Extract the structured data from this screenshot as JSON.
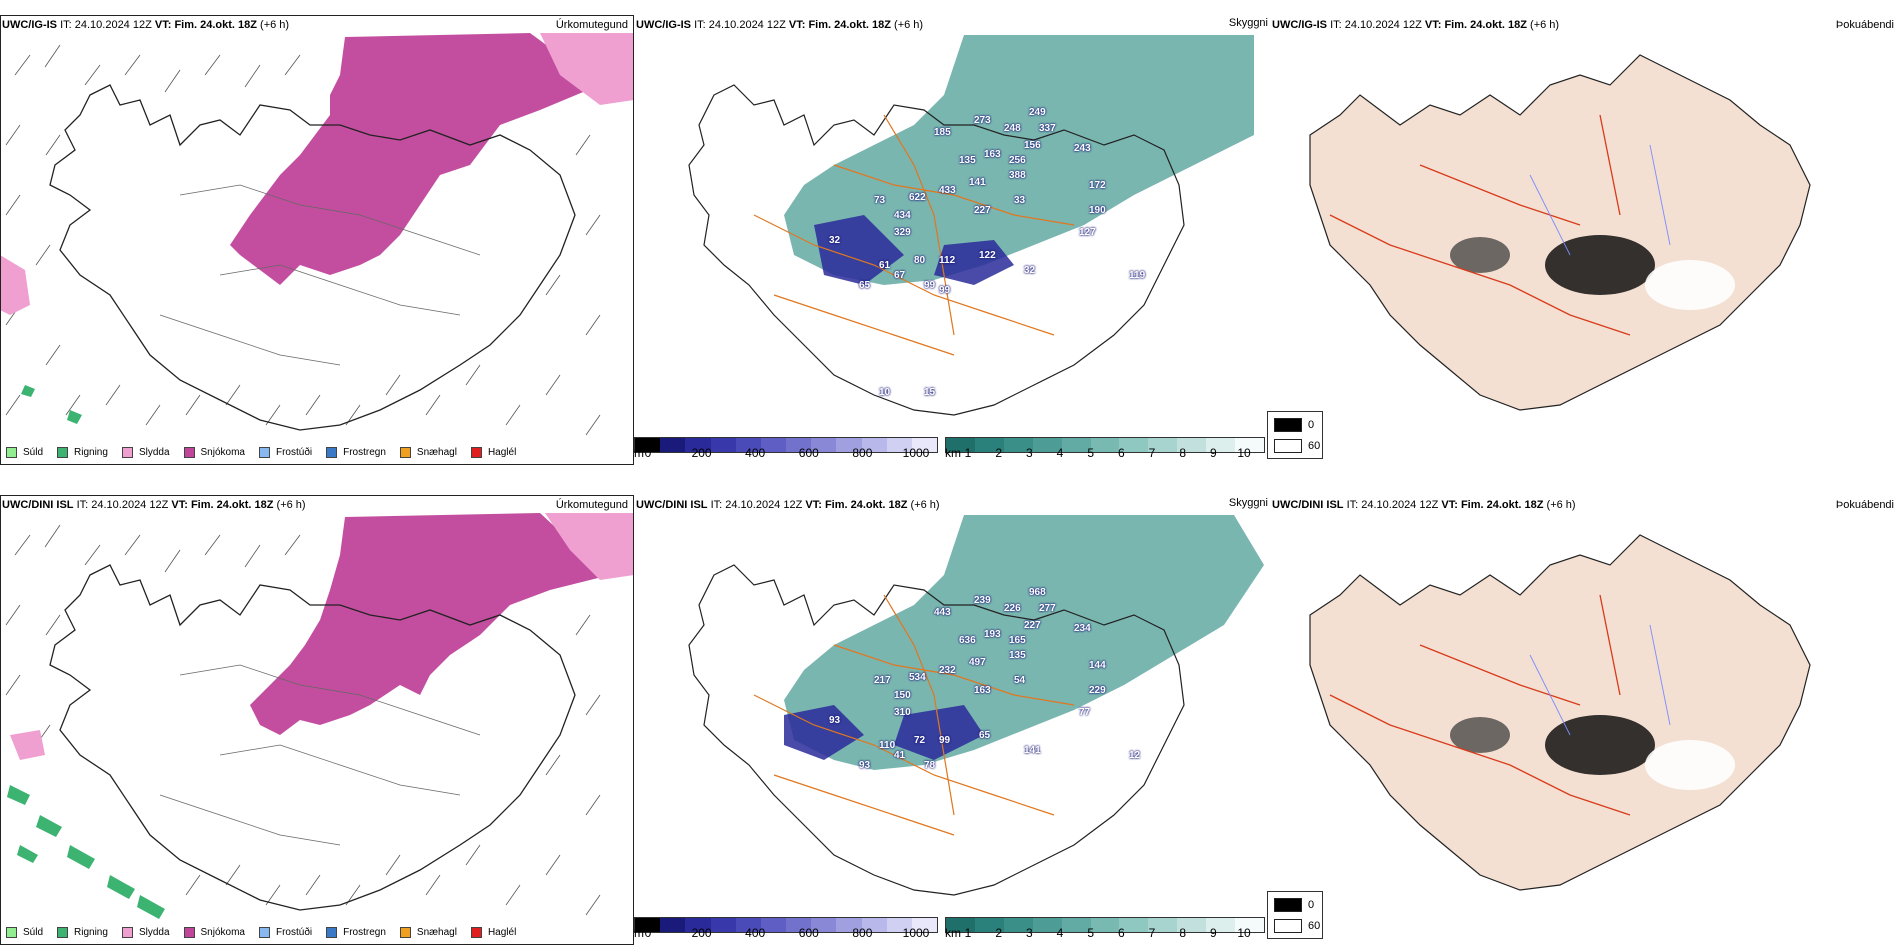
{
  "rows": [
    {
      "model": "UWC/IG-IS",
      "it_label": "IT:",
      "it_value": "24.10.2024 12Z",
      "vt_label": "VT:",
      "vt_value": "Fim. 24.okt. 18Z",
      "lead": "(+6 h)",
      "precip_title": "Úrkomutegund",
      "vis_title": "Skyggni",
      "fog_title": "Þokuábendi",
      "cloud_labels": [
        "249",
        "273",
        "185",
        "248",
        "337",
        "156",
        "243",
        "135",
        "163",
        "256",
        "388",
        "141",
        "172",
        "73",
        "622",
        "433",
        "227",
        "190",
        "434",
        "329",
        "33",
        "127",
        "32",
        "122",
        "112",
        "80",
        "61",
        "67",
        "32",
        "119",
        "65",
        "99",
        "99",
        "10",
        "15"
      ]
    },
    {
      "model": "UWC/DINI ISL",
      "it_label": "IT:",
      "it_value": "24.10.2024 12Z",
      "vt_label": "VT:",
      "vt_value": "Fim. 24.okt. 18Z",
      "lead": "(+6 h)",
      "precip_title": "Úrkomutegund",
      "vis_title": "Skyggni",
      "fog_title": "Þokuábendi",
      "cloud_labels": [
        "968",
        "239",
        "443",
        "226",
        "277",
        "227",
        "234",
        "636",
        "193",
        "165",
        "135",
        "497",
        "144",
        "217",
        "534",
        "232",
        "163",
        "229",
        "150",
        "310",
        "54",
        "77",
        "93",
        "65",
        "99",
        "72",
        "110",
        "41",
        "141",
        "12",
        "93",
        "78"
      ]
    }
  ],
  "precip_legend": [
    {
      "label": "Súld",
      "color": "#90ee90"
    },
    {
      "label": "Rigning",
      "color": "#3cb371"
    },
    {
      "label": "Slydda",
      "color": "#f0a0d0"
    },
    {
      "label": "Snjókoma",
      "color": "#c0449a"
    },
    {
      "label": "Frostúði",
      "color": "#87b8f0"
    },
    {
      "label": "Frostregn",
      "color": "#3a78c8"
    },
    {
      "label": "Snæhagl",
      "color": "#f0a020"
    },
    {
      "label": "Haglél",
      "color": "#e02020"
    }
  ],
  "cloudbase_bar": {
    "unit": "m",
    "ticks": [
      "0",
      "200",
      "400",
      "600",
      "800",
      "1000"
    ],
    "colors": [
      "#000000",
      "#1a1a7a",
      "#2a2a9a",
      "#3838aa",
      "#4a4ab8",
      "#5e5ec4",
      "#7272cc",
      "#8888d6",
      "#a0a0e0",
      "#b8b8ea",
      "#d0d0f2",
      "#e8e8fa"
    ]
  },
  "visibility_bar": {
    "unit": "km",
    "ticks": [
      "1",
      "2",
      "3",
      "4",
      "5",
      "6",
      "7",
      "8",
      "9",
      "10"
    ],
    "colors": [
      "#1f6f6a",
      "#2a807a",
      "#3a8f88",
      "#4d9d96",
      "#62aba4",
      "#78b9b2",
      "#8fc7c1",
      "#a8d4cf",
      "#c2e1de",
      "#dcefed",
      "#f4fbfa"
    ]
  },
  "fog_legend": {
    "max": "0",
    "min": "60"
  }
}
